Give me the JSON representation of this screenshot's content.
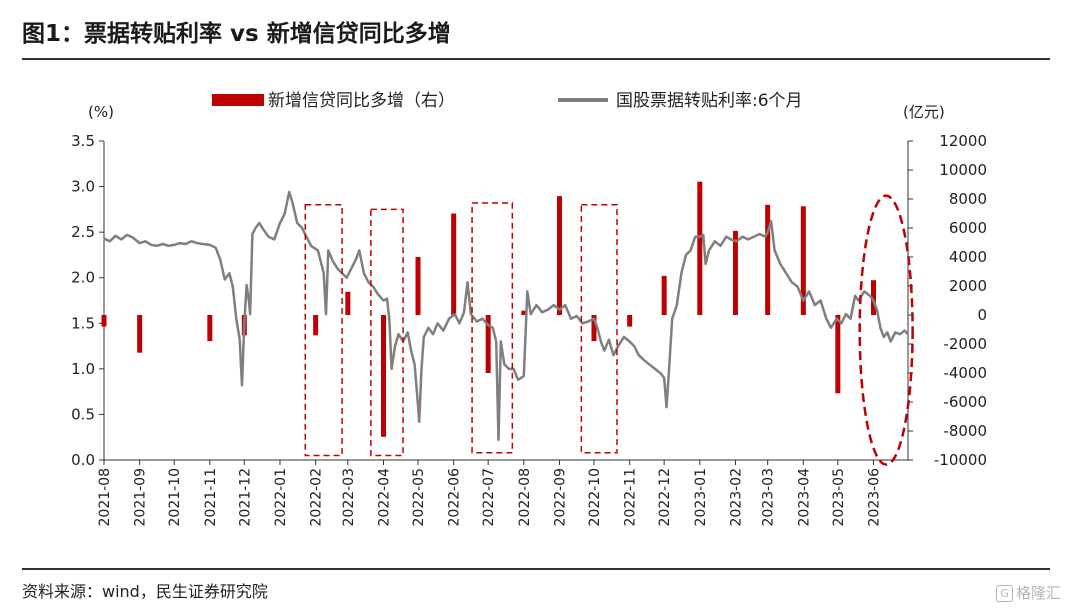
{
  "figure": {
    "title": "图1：票据转贴利率 vs 新增信贷同比多增",
    "source": "资料来源：wind，民生证券研究院",
    "watermark_icon": "G",
    "watermark_text": "格隆汇"
  },
  "chart_data": {
    "type": "bar+line",
    "legend_position": "top",
    "grid": false,
    "left_axis": {
      "unit_label": "(%)",
      "range": [
        0,
        3.5
      ],
      "ticks": [
        "0.0",
        "0.5",
        "1.0",
        "1.5",
        "2.0",
        "2.5",
        "3.0",
        "3.5"
      ]
    },
    "right_axis": {
      "unit_label": "(亿元)",
      "range": [
        -10000,
        12000
      ],
      "ticks": [
        "-10000",
        "-8000",
        "-6000",
        "-4000",
        "-2000",
        "0",
        "2000",
        "4000",
        "6000",
        "8000",
        "10000",
        "12000"
      ]
    },
    "x_axis": {
      "start": "2021-08",
      "end": "2023-06",
      "ticks": [
        "2021-08",
        "2021-09",
        "2021-10",
        "2021-11",
        "2021-12",
        "2022-01",
        "2022-02",
        "2022-03",
        "2022-04",
        "2022-05",
        "2022-06",
        "2022-07",
        "2022-08",
        "2022-09",
        "2022-10",
        "2022-11",
        "2022-12",
        "2023-01",
        "2023-02",
        "2023-03",
        "2023-04",
        "2023-05",
        "2023-06"
      ]
    },
    "bar_series": {
      "name": "新增信贷同比多增（右）",
      "axis": "right",
      "color": "#c00000",
      "points": [
        {
          "x": "2021-08",
          "y": -800
        },
        {
          "x": "2021-09",
          "y": -2600
        },
        {
          "x": "2021-11",
          "y": -1800
        },
        {
          "x": "2021-12",
          "y": -1400
        },
        {
          "x": "2022-02",
          "y": -1400
        },
        {
          "x": "2022-03",
          "y": 1600
        },
        {
          "x": "2022-04",
          "y": -8400
        },
        {
          "x": "2022-05",
          "y": 4000
        },
        {
          "x": "2022-06",
          "y": 7000
        },
        {
          "x": "2022-07",
          "y": -4000
        },
        {
          "x": "2022-08",
          "y": 300
        },
        {
          "x": "2022-09",
          "y": 8200
        },
        {
          "x": "2022-10",
          "y": -1800
        },
        {
          "x": "2022-11",
          "y": -800
        },
        {
          "x": "2022-12",
          "y": 2700
        },
        {
          "x": "2023-01",
          "y": 9200
        },
        {
          "x": "2023-02",
          "y": 5800
        },
        {
          "x": "2023-03",
          "y": 7600
        },
        {
          "x": "2023-04",
          "y": 7500
        },
        {
          "x": "2023-05",
          "y": -5400
        },
        {
          "x": "2023-06",
          "y": 2400
        }
      ]
    },
    "line_series": {
      "name": "国股票据转贴利率:6个月",
      "axis": "left",
      "color": "#7f7f7f",
      "points": [
        [
          "2021-08-01",
          2.43
        ],
        [
          "2021-08-06",
          2.4
        ],
        [
          "2021-08-11",
          2.46
        ],
        [
          "2021-08-16",
          2.42
        ],
        [
          "2021-08-21",
          2.47
        ],
        [
          "2021-08-26",
          2.44
        ],
        [
          "2021-09-01",
          2.38
        ],
        [
          "2021-09-06",
          2.4
        ],
        [
          "2021-09-11",
          2.36
        ],
        [
          "2021-09-16",
          2.35
        ],
        [
          "2021-09-21",
          2.37
        ],
        [
          "2021-09-26",
          2.35
        ],
        [
          "2021-10-01",
          2.36
        ],
        [
          "2021-10-06",
          2.38
        ],
        [
          "2021-10-11",
          2.37
        ],
        [
          "2021-10-16",
          2.4
        ],
        [
          "2021-10-21",
          2.38
        ],
        [
          "2021-10-26",
          2.37
        ],
        [
          "2021-11-01",
          2.36
        ],
        [
          "2021-11-06",
          2.33
        ],
        [
          "2021-11-10",
          2.2
        ],
        [
          "2021-11-14",
          1.98
        ],
        [
          "2021-11-18",
          2.05
        ],
        [
          "2021-11-21",
          1.9
        ],
        [
          "2021-11-24",
          1.55
        ],
        [
          "2021-11-27",
          1.32
        ],
        [
          "2021-11-29",
          0.82
        ],
        [
          "2021-12-01",
          1.5
        ],
        [
          "2021-12-03",
          1.92
        ],
        [
          "2021-12-05",
          1.75
        ],
        [
          "2021-12-06",
          1.6
        ],
        [
          "2021-12-08",
          2.48
        ],
        [
          "2021-12-11",
          2.55
        ],
        [
          "2021-12-14",
          2.6
        ],
        [
          "2021-12-18",
          2.52
        ],
        [
          "2021-12-22",
          2.45
        ],
        [
          "2021-12-27",
          2.42
        ],
        [
          "2022-01-01",
          2.6
        ],
        [
          "2022-01-05",
          2.7
        ],
        [
          "2022-01-09",
          2.94
        ],
        [
          "2022-01-12",
          2.82
        ],
        [
          "2022-01-16",
          2.6
        ],
        [
          "2022-01-20",
          2.55
        ],
        [
          "2022-01-24",
          2.45
        ],
        [
          "2022-01-28",
          2.35
        ],
        [
          "2022-02-03",
          2.3
        ],
        [
          "2022-02-08",
          2.05
        ],
        [
          "2022-02-10",
          1.6
        ],
        [
          "2022-02-12",
          2.3
        ],
        [
          "2022-02-16",
          2.18
        ],
        [
          "2022-02-20",
          2.1
        ],
        [
          "2022-02-24",
          2.05
        ],
        [
          "2022-02-28",
          2.0
        ],
        [
          "2022-03-04",
          2.1
        ],
        [
          "2022-03-08",
          2.2
        ],
        [
          "2022-03-11",
          2.3
        ],
        [
          "2022-03-15",
          2.05
        ],
        [
          "2022-03-19",
          1.95
        ],
        [
          "2022-03-23",
          1.9
        ],
        [
          "2022-03-27",
          1.82
        ],
        [
          "2022-04-01",
          1.75
        ],
        [
          "2022-04-04",
          1.77
        ],
        [
          "2022-04-06",
          1.55
        ],
        [
          "2022-04-08",
          1.0
        ],
        [
          "2022-04-11",
          1.25
        ],
        [
          "2022-04-14",
          1.38
        ],
        [
          "2022-04-18",
          1.3
        ],
        [
          "2022-04-22",
          1.4
        ],
        [
          "2022-04-25",
          1.2
        ],
        [
          "2022-04-28",
          1.05
        ],
        [
          "2022-05-01",
          0.6
        ],
        [
          "2022-05-02",
          0.42
        ],
        [
          "2022-05-04",
          1.0
        ],
        [
          "2022-05-06",
          1.35
        ],
        [
          "2022-05-10",
          1.45
        ],
        [
          "2022-05-14",
          1.38
        ],
        [
          "2022-05-18",
          1.5
        ],
        [
          "2022-05-23",
          1.42
        ],
        [
          "2022-05-28",
          1.55
        ],
        [
          "2022-06-02",
          1.6
        ],
        [
          "2022-06-06",
          1.5
        ],
        [
          "2022-06-10",
          1.62
        ],
        [
          "2022-06-13",
          1.95
        ],
        [
          "2022-06-16",
          1.6
        ],
        [
          "2022-06-21",
          1.52
        ],
        [
          "2022-06-26",
          1.55
        ],
        [
          "2022-07-01",
          1.48
        ],
        [
          "2022-07-05",
          1.45
        ],
        [
          "2022-07-08",
          1.3
        ],
        [
          "2022-07-10",
          0.22
        ],
        [
          "2022-07-12",
          1.3
        ],
        [
          "2022-07-15",
          1.05
        ],
        [
          "2022-07-19",
          1.0
        ],
        [
          "2022-07-23",
          1.0
        ],
        [
          "2022-07-27",
          0.88
        ],
        [
          "2022-08-01",
          0.92
        ],
        [
          "2022-08-04",
          1.85
        ],
        [
          "2022-08-07",
          1.6
        ],
        [
          "2022-08-12",
          1.7
        ],
        [
          "2022-08-17",
          1.62
        ],
        [
          "2022-08-22",
          1.65
        ],
        [
          "2022-08-27",
          1.7
        ],
        [
          "2022-09-01",
          1.65
        ],
        [
          "2022-09-06",
          1.7
        ],
        [
          "2022-09-11",
          1.55
        ],
        [
          "2022-09-16",
          1.58
        ],
        [
          "2022-09-21",
          1.5
        ],
        [
          "2022-09-26",
          1.52
        ],
        [
          "2022-10-01",
          1.55
        ],
        [
          "2022-10-04",
          1.45
        ],
        [
          "2022-10-07",
          1.3
        ],
        [
          "2022-10-10",
          1.2
        ],
        [
          "2022-10-14",
          1.32
        ],
        [
          "2022-10-18",
          1.15
        ],
        [
          "2022-10-22",
          1.25
        ],
        [
          "2022-10-27",
          1.35
        ],
        [
          "2022-11-01",
          1.3
        ],
        [
          "2022-11-05",
          1.25
        ],
        [
          "2022-11-09",
          1.15
        ],
        [
          "2022-11-13",
          1.1
        ],
        [
          "2022-11-18",
          1.05
        ],
        [
          "2022-11-23",
          1.0
        ],
        [
          "2022-11-28",
          0.95
        ],
        [
          "2022-12-01",
          0.9
        ],
        [
          "2022-12-03",
          0.58
        ],
        [
          "2022-12-05",
          0.95
        ],
        [
          "2022-12-08",
          1.55
        ],
        [
          "2022-12-12",
          1.7
        ],
        [
          "2022-12-16",
          2.05
        ],
        [
          "2022-12-20",
          2.25
        ],
        [
          "2022-12-24",
          2.3
        ],
        [
          "2022-12-28",
          2.45
        ],
        [
          "2023-01-01",
          2.45
        ],
        [
          "2023-01-04",
          2.47
        ],
        [
          "2023-01-06",
          2.15
        ],
        [
          "2023-01-09",
          2.3
        ],
        [
          "2023-01-14",
          2.4
        ],
        [
          "2023-01-19",
          2.35
        ],
        [
          "2023-01-24",
          2.45
        ],
        [
          "2023-01-28",
          2.42
        ],
        [
          "2023-02-02",
          2.4
        ],
        [
          "2023-02-07",
          2.45
        ],
        [
          "2023-02-12",
          2.42
        ],
        [
          "2023-02-17",
          2.45
        ],
        [
          "2023-02-22",
          2.48
        ],
        [
          "2023-02-27",
          2.45
        ],
        [
          "2023-03-01",
          2.5
        ],
        [
          "2023-03-04",
          2.62
        ],
        [
          "2023-03-07",
          2.3
        ],
        [
          "2023-03-12",
          2.15
        ],
        [
          "2023-03-17",
          2.05
        ],
        [
          "2023-03-22",
          1.95
        ],
        [
          "2023-03-27",
          1.9
        ],
        [
          "2023-04-01",
          1.75
        ],
        [
          "2023-04-06",
          1.85
        ],
        [
          "2023-04-11",
          1.7
        ],
        [
          "2023-04-16",
          1.75
        ],
        [
          "2023-04-21",
          1.55
        ],
        [
          "2023-04-25",
          1.45
        ],
        [
          "2023-04-30",
          1.55
        ],
        [
          "2023-05-04",
          1.5
        ],
        [
          "2023-05-08",
          1.6
        ],
        [
          "2023-05-12",
          1.55
        ],
        [
          "2023-05-16",
          1.8
        ],
        [
          "2023-05-19",
          1.75
        ],
        [
          "2023-05-24",
          1.85
        ],
        [
          "2023-05-29",
          1.8
        ],
        [
          "2023-06-01",
          1.75
        ],
        [
          "2023-06-04",
          1.65
        ],
        [
          "2023-06-07",
          1.45
        ],
        [
          "2023-06-10",
          1.35
        ],
        [
          "2023-06-13",
          1.4
        ],
        [
          "2023-06-16",
          1.3
        ],
        [
          "2023-06-20",
          1.4
        ],
        [
          "2023-06-24",
          1.38
        ],
        [
          "2023-06-28",
          1.42
        ],
        [
          "2023-07-01",
          1.38
        ]
      ]
    },
    "annotations": [
      {
        "shape": "dashed-rect",
        "color": "#c00000",
        "x_start": "2022-01-23",
        "x_end": "2022-02-24",
        "y_top": 2.8,
        "y_bottom": 0.05
      },
      {
        "shape": "dashed-rect",
        "color": "#c00000",
        "x_start": "2022-03-21",
        "x_end": "2022-04-18",
        "y_top": 2.75,
        "y_bottom": 0.05
      },
      {
        "shape": "dashed-rect",
        "color": "#c00000",
        "x_start": "2022-06-17",
        "x_end": "2022-07-22",
        "y_top": 2.82,
        "y_bottom": 0.08
      },
      {
        "shape": "dashed-rect",
        "color": "#c00000",
        "x_start": "2022-09-20",
        "x_end": "2022-10-21",
        "y_top": 2.8,
        "y_bottom": 0.08
      },
      {
        "shape": "dashed-ellipse",
        "color": "#c00000",
        "x_start": "2023-05-20",
        "x_end": "2023-07-05",
        "y_top": 2.9,
        "y_bottom": -0.05
      }
    ]
  }
}
